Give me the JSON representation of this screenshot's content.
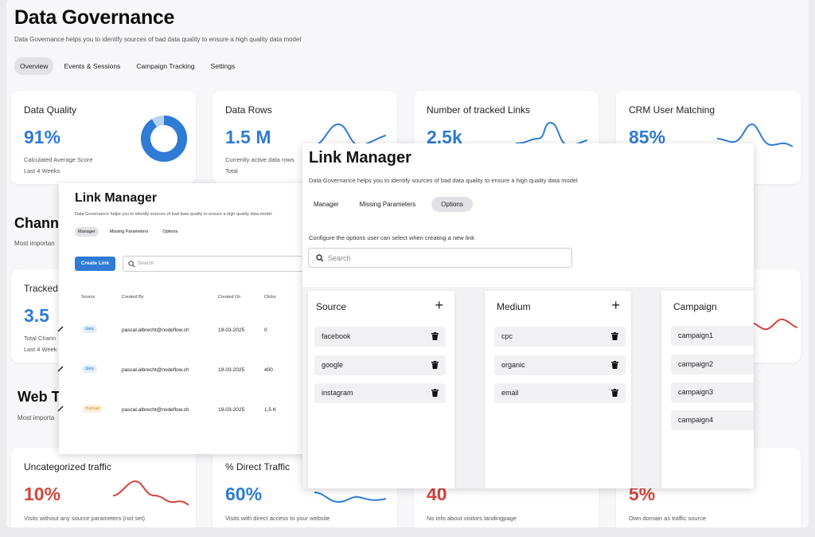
{
  "dashboard": {
    "title": "Data Governance",
    "subtitle": "Data Governance helps you to identify sources of bad data quality to ensure a high quality data model",
    "tabs": [
      "Overview",
      "Events & Sessions",
      "Campaign Tracking",
      "Settings"
    ],
    "active_tab": "Overview",
    "cards_top": [
      {
        "title": "Data Quality",
        "value": "91%",
        "sub1": "Calculated Average Score",
        "sub2": "Last 4 Weeks",
        "progress": 0.91
      },
      {
        "title": "Data Rows",
        "value": "1.5 M",
        "sub1": "Currently active data rows",
        "sub2": "Total"
      },
      {
        "title": "Number of tracked Links",
        "value": "2.5k",
        "sub1": "",
        "sub2": ""
      },
      {
        "title": "CRM User Matching",
        "value": "85%",
        "sub1": "",
        "sub2": ""
      }
    ],
    "section1": {
      "title": "Channe",
      "subtitle": "Most importan"
    },
    "card_mid": {
      "title": "Tracked",
      "value": "3.5",
      "sub1": "Total Chann",
      "sub2": "Last 4 Week"
    },
    "section2": {
      "title": "Web T",
      "subtitle": "Most importa"
    },
    "cards_bottom": [
      {
        "title": "Uncategorized traffic",
        "value": "10%",
        "sub": "Visits without any source parameters (not set)"
      },
      {
        "title": "% Direct Traffic",
        "value": "60%",
        "sub": "Visits with direct access to your website"
      },
      {
        "title": "",
        "value": "40",
        "sub": "No info about visitors landingpage"
      },
      {
        "title": "",
        "value": "5%",
        "sub": "Own domain as traffic source"
      }
    ]
  },
  "link_manager_small": {
    "title": "Link Manager",
    "subtitle": "Data Governance helps you to identify sources of bad data quality to ensure a high quality data model",
    "tabs": [
      "Manager",
      "Missing Parameters",
      "Options"
    ],
    "active_tab": "Manager",
    "create_label": "Create Link",
    "search_placeholder": "Search",
    "columns": [
      "Source",
      "Created By",
      "Created On",
      "Clicks"
    ],
    "rows": [
      {
        "source": "data",
        "created_by": "pascal.albrecht@nodeflow.ch",
        "created_on": "19-03-2025",
        "clicks": "0"
      },
      {
        "source": "data",
        "created_by": "pascal.albrecht@nodeflow.ch",
        "created_on": "19-03-2025",
        "clicks": "400"
      },
      {
        "source": "manual",
        "created_by": "pascal.albrecht@nodeflow.ch",
        "created_on": "19-03-2025",
        "clicks": "1,5 K"
      }
    ]
  },
  "link_manager_large": {
    "title": "Link Manager",
    "subtitle": "Data Governance helps you to identify sources of bad data quality to ensure a high quality data model",
    "tabs": [
      "Manager",
      "Missing Parameters",
      "Options"
    ],
    "active_tab": "Options",
    "config_text": "Configure the options user can select when creating a new link",
    "search_placeholder": "Search",
    "panels": [
      {
        "title": "Source",
        "items": [
          "facebook",
          "google",
          "instagram"
        ]
      },
      {
        "title": "Medium",
        "items": [
          "cpc",
          "organic",
          "email"
        ]
      },
      {
        "title": "Campaign",
        "items": [
          "campaign1",
          "campaign2",
          "campaign3",
          "campaign4"
        ]
      }
    ]
  },
  "colors": {
    "accent_blue": "#2f7bd6",
    "alert_red": "#d5453c",
    "badge_orange": "#d48a1a"
  }
}
